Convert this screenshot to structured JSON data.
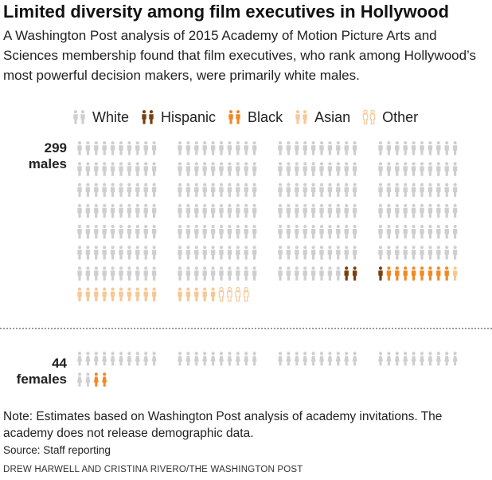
{
  "title": "Limited diversity among film executives in Hollywood",
  "subtitle": "A Washington Post analysis of 2015 Academy of Motion Picture Arts and Sciences membership found that film executives, who rank among Hollywood’s most powerful decision makers, were primarily white males.",
  "legend": [
    {
      "label": "White",
      "color": "#cfcfcf"
    },
    {
      "label": "Hispanic",
      "color": "#7a3f0c"
    },
    {
      "label": "Black",
      "color": "#f08a24"
    },
    {
      "label": "Asian",
      "color": "#f7c896"
    },
    {
      "label": "Other",
      "color": "#f7c896"
    }
  ],
  "groups": {
    "males": {
      "count": "299",
      "label": "males"
    },
    "females": {
      "count": "44",
      "label": "females"
    }
  },
  "chart_data": {
    "type": "pictogram",
    "series": [
      {
        "name": "males",
        "total": 299,
        "counts": {
          "White": 268,
          "Hispanic": 3,
          "Black": 8,
          "Asian": 16,
          "Other": 4
        }
      },
      {
        "name": "females",
        "total": 44,
        "counts": {
          "White": 42,
          "Hispanic": 0,
          "Black": 2,
          "Asian": 0,
          "Other": 0
        }
      }
    ]
  },
  "note": "Note: Estimates based on Washington Post analysis of academy invitations. The academy does not release demographic data.",
  "source": "Source: Staff reporting",
  "credit": "DREW HARWELL AND CRISTINA RIVERO/THE WASHINGTON POST"
}
